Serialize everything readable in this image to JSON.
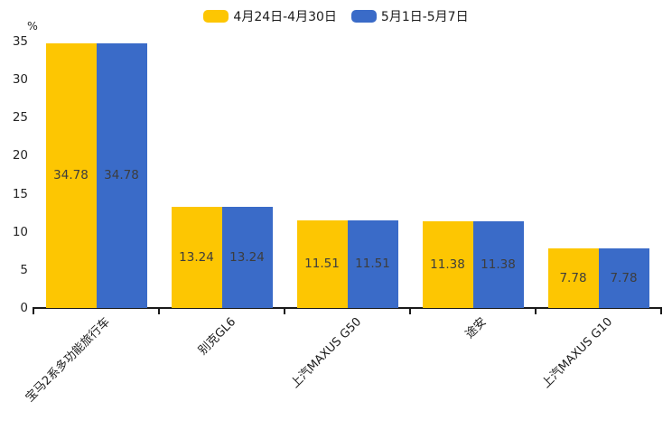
{
  "page": {
    "background": "#ffffff",
    "text_color": "#1a1a1a"
  },
  "legend": {
    "position": "top-center"
  },
  "chart_data": {
    "type": "bar",
    "title": "",
    "categories": [
      "宝马2系多功能旅行车",
      "别克GL6",
      "上汽MAXUS G50",
      "途安",
      "上汽MAXUS G10"
    ],
    "series": [
      {
        "name": "4月24日-4月30日",
        "color": "#FDC602",
        "values": [
          34.78,
          13.24,
          11.51,
          11.38,
          7.78
        ]
      },
      {
        "name": "5月1日-5月7日",
        "color": "#3A6BC8",
        "values": [
          34.78,
          13.24,
          11.51,
          11.38,
          7.78
        ]
      }
    ],
    "value_labels": [
      "34.78",
      "13.24",
      "11.51",
      "11.38",
      "7.78"
    ],
    "value_label_position": "inside-center",
    "value_label_color": "#3d3d3d",
    "xlabel": "",
    "ylabel": "%",
    "ylim": [
      0,
      35
    ],
    "yticks": [
      "0",
      "5",
      "10",
      "15",
      "20",
      "25",
      "30",
      "35"
    ],
    "grid": false,
    "legend_position": "top",
    "xtick_rotation": 45,
    "axis_color": "#1a1a1a"
  }
}
